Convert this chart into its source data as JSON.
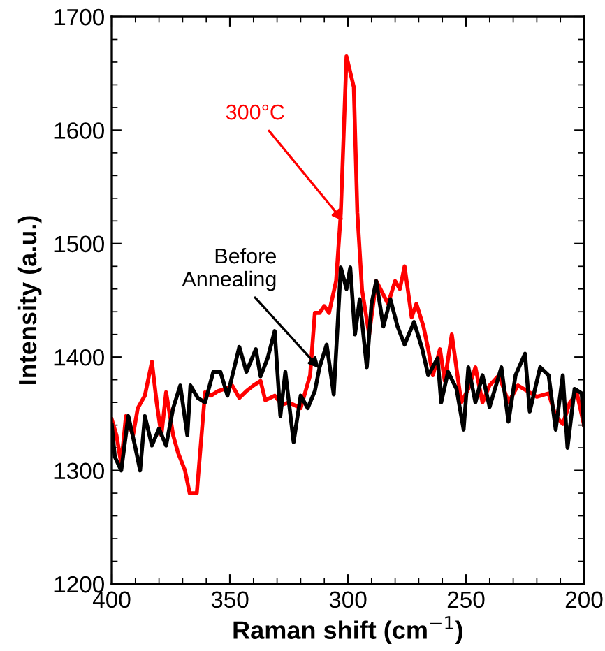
{
  "chart_data": {
    "type": "line",
    "xlabel": "Raman shift (cm$^{−1}$)",
    "ylabel": "Intensity (a.u.)",
    "xlim": [
      400,
      200
    ],
    "ylim": [
      1200,
      1700
    ],
    "xticks": [
      400,
      350,
      300,
      250,
      200
    ],
    "yticks": [
      1200,
      1300,
      1400,
      1500,
      1600,
      1700
    ],
    "grid": false,
    "marker": "none",
    "line_style": "solid",
    "series": [
      {
        "color": "#ff0000",
        "x": [
          400,
          398,
          396,
          394,
          391,
          389,
          386,
          383,
          381,
          379,
          377,
          374,
          372,
          369,
          367,
          364,
          360.5,
          358,
          355,
          352,
          349,
          346,
          343,
          340,
          337,
          335,
          331,
          328,
          325,
          320,
          316,
          314,
          312,
          310,
          308,
          305,
          303,
          300.6,
          297.5,
          296,
          294,
          291,
          288,
          285,
          283,
          280,
          278,
          276,
          273,
          271,
          268,
          266,
          264,
          261,
          259,
          256,
          252,
          249,
          246,
          243,
          240,
          236,
          232,
          228,
          224,
          220,
          215,
          212,
          209,
          206,
          203,
          200
        ],
        "values": [
          1345,
          1331,
          1306,
          1348,
          1331,
          1355,
          1366,
          1396,
          1360,
          1331,
          1369,
          1331,
          1316,
          1300,
          1280,
          1280,
          1369,
          1366,
          1370,
          1372,
          1375,
          1364,
          1370,
          1375,
          1379,
          1362,
          1366,
          1358,
          1360,
          1355,
          1384,
          1439,
          1439,
          1445,
          1439,
          1467,
          1527,
          1665,
          1638,
          1527,
          1459,
          1420,
          1467,
          1455,
          1447,
          1467,
          1460,
          1480,
          1435,
          1447,
          1427,
          1407,
          1384,
          1407,
          1379,
          1420,
          1360,
          1372,
          1391,
          1360,
          1375,
          1384,
          1360,
          1375,
          1370,
          1365,
          1368,
          1348,
          1341,
          1360,
          1368,
          1340
        ]
      },
      {
        "color": "#000000",
        "x": [
          400,
          398.7,
          396,
          393,
          390,
          388,
          386,
          383,
          380,
          377,
          374,
          371,
          368,
          366.7,
          363.6,
          360.5,
          357,
          354,
          351,
          346,
          343,
          339,
          337,
          334,
          331,
          328.6,
          326.5,
          323,
          320,
          317,
          314,
          312,
          309,
          306,
          303,
          300.6,
          299,
          297,
          295,
          292,
          290,
          288,
          285,
          282,
          279,
          276,
          272,
          268.5,
          266,
          262,
          260.5,
          257.6,
          254,
          251,
          249,
          246,
          243,
          240,
          235,
          232,
          229,
          225,
          223,
          218.6,
          215,
          212,
          209,
          207,
          204,
          201,
          200
        ],
        "values": [
          1340,
          1312,
          1300,
          1348,
          1320,
          1300,
          1348,
          1322,
          1337,
          1322,
          1355,
          1375,
          1331,
          1375,
          1364,
          1360,
          1387,
          1387,
          1366,
          1409,
          1387,
          1407,
          1383,
          1399,
          1423,
          1348,
          1387,
          1325,
          1366,
          1355,
          1370,
          1391,
          1411,
          1367,
          1479,
          1460,
          1479,
          1420,
          1451,
          1391,
          1447,
          1467,
          1427,
          1451,
          1427,
          1411,
          1431,
          1407,
          1384,
          1399,
          1360,
          1387,
          1372,
          1336,
          1391,
          1360,
          1384,
          1356,
          1391,
          1343,
          1384,
          1403,
          1352,
          1391,
          1384,
          1336,
          1384,
          1320,
          1372,
          1368,
          1340
        ]
      }
    ],
    "annotations": [
      {
        "text": "300°C",
        "x": 302,
        "y": 1520
      },
      {
        "text": "Before\nAnnealing",
        "x": 312,
        "y": 1390
      }
    ]
  }
}
